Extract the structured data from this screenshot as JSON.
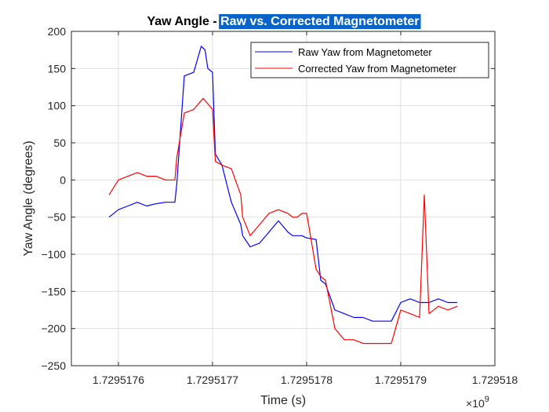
{
  "chart_data": {
    "type": "line",
    "title": "Yaw Angle - Raw vs. Corrected Magnetometer",
    "title_parts": [
      "Yaw Angle - ",
      "Raw vs. Corrected Magnetometer"
    ],
    "xlabel": "Time (s)",
    "ylabel": "Yaw Angle (degrees)",
    "x_exponent_label": "×10",
    "x_exponent_power": "9",
    "xlim": [
      1.72951755,
      1.729518
    ],
    "ylim": [
      -250,
      200
    ],
    "xticks": [
      1.7295176,
      1.7295177,
      1.7295178,
      1.7295179,
      1.729518
    ],
    "xtick_labels": [
      "1.7295176",
      "1.7295177",
      "1.7295178",
      "1.7295179",
      "1.729518"
    ],
    "yticks": [
      200,
      150,
      100,
      50,
      0,
      -50,
      -100,
      -150,
      -200,
      -250
    ],
    "ytick_labels": [
      "200",
      "150",
      "100",
      "50",
      "0",
      "−50",
      "−100",
      "−150",
      "−200",
      "−250"
    ],
    "grid": true,
    "legend_position": "top-right",
    "series": [
      {
        "name": "Raw Yaw from Magnetometer",
        "color": "#0000ff",
        "x": [
          1.72951759,
          1.7295176,
          1.72951761,
          1.72951762,
          1.72951763,
          1.72951764,
          1.72951765,
          1.72951766,
          1.729517662,
          1.72951767,
          1.72951768,
          1.729517688,
          1.729517692,
          1.729517695,
          1.7295177,
          1.729517703,
          1.72951771,
          1.72951772,
          1.72951773,
          1.729517732,
          1.72951774,
          1.72951775,
          1.72951776,
          1.72951777,
          1.72951778,
          1.729517785,
          1.72951779,
          1.729517795,
          1.7295178,
          1.72951781,
          1.729517815,
          1.72951782,
          1.72951783,
          1.72951784,
          1.72951785,
          1.72951786,
          1.72951787,
          1.72951788,
          1.72951789,
          1.7295179,
          1.72951791,
          1.72951792,
          1.72951793,
          1.72951794,
          1.72951795,
          1.72951796
        ],
        "y": [
          -50,
          -40,
          -35,
          -30,
          -35,
          -32,
          -30,
          -30,
          -5,
          140,
          145,
          180,
          175,
          150,
          145,
          35,
          20,
          -30,
          -60,
          -75,
          -90,
          -85,
          -70,
          -55,
          -70,
          -75,
          -75,
          -75,
          -78,
          -80,
          -135,
          -140,
          -175,
          -180,
          -185,
          -185,
          -190,
          -190,
          -190,
          -165,
          -160,
          -165,
          -165,
          -160,
          -165,
          -165
        ]
      },
      {
        "name": "Corrected Yaw from Magnetometer",
        "color": "#ff0000",
        "x": [
          1.72951759,
          1.7295176,
          1.72951761,
          1.72951762,
          1.72951763,
          1.72951764,
          1.72951765,
          1.72951766,
          1.729517662,
          1.72951767,
          1.72951768,
          1.72951769,
          1.7295177,
          1.729517703,
          1.72951771,
          1.72951772,
          1.72951773,
          1.729517732,
          1.72951774,
          1.72951775,
          1.72951776,
          1.72951777,
          1.72951778,
          1.729517785,
          1.72951779,
          1.729517795,
          1.7295178,
          1.72951781,
          1.729517815,
          1.72951782,
          1.72951783,
          1.72951784,
          1.72951785,
          1.72951786,
          1.72951787,
          1.72951788,
          1.72951789,
          1.7295179,
          1.72951791,
          1.72951792,
          1.729517925,
          1.72951793,
          1.72951794,
          1.72951795,
          1.72951796
        ],
        "y": [
          -20,
          0,
          5,
          10,
          5,
          5,
          0,
          0,
          30,
          90,
          95,
          110,
          95,
          25,
          20,
          15,
          -20,
          -50,
          -75,
          -60,
          -45,
          -40,
          -45,
          -50,
          -50,
          -45,
          -45,
          -120,
          -130,
          -135,
          -200,
          -215,
          -215,
          -220,
          -220,
          -220,
          -220,
          -175,
          -180,
          -185,
          -20,
          -180,
          -170,
          -175,
          -170
        ]
      }
    ]
  }
}
